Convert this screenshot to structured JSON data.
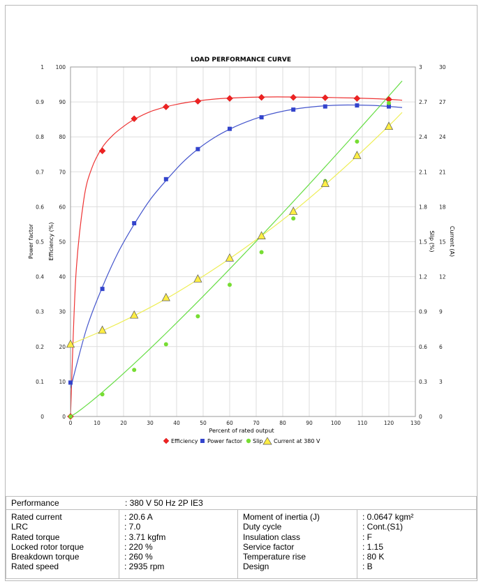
{
  "chart_data": {
    "type": "line",
    "title": "LOAD PERFORMANCE CURVE",
    "xlabel": "Percent of rated output",
    "xlim": [
      0,
      130
    ],
    "xticks": [
      "0",
      "10",
      "20",
      "30",
      "40",
      "50",
      "60",
      "70",
      "80",
      "90",
      "100",
      "110",
      "120",
      "130"
    ],
    "axes": {
      "power_factor": {
        "label": "Power factor",
        "lim": [
          0,
          1
        ],
        "ticks": [
          "0",
          "0.1",
          "0.2",
          "0.3",
          "0.4",
          "0.5",
          "0.6",
          "0.7",
          "0.8",
          "0.9",
          "1"
        ]
      },
      "efficiency": {
        "label": "Efficiency (%)",
        "lim": [
          0,
          100
        ],
        "ticks": [
          "0",
          "10",
          "20",
          "30",
          "40",
          "50",
          "60",
          "70",
          "80",
          "90",
          "100"
        ]
      },
      "slip": {
        "label": "Slip (%)",
        "lim": [
          0,
          3
        ],
        "ticks": [
          "0",
          "0.3",
          "0.6",
          "0.9",
          "1.2",
          "1.5",
          "1.8",
          "2.1",
          "2.4",
          "2.7",
          "3"
        ]
      },
      "current": {
        "label": "Current (A)",
        "lim": [
          0,
          30
        ],
        "ticks": [
          "0",
          "3",
          "6",
          "9",
          "12",
          "15",
          "18",
          "21",
          "24",
          "27",
          "30"
        ]
      }
    },
    "grid": true,
    "legend_position": "bottom",
    "series": [
      {
        "name": "Efficiency",
        "axis": "efficiency",
        "color": "#ee2222",
        "marker": "diamond",
        "x": [
          0,
          12,
          24,
          36,
          48,
          60,
          72,
          84,
          96,
          108,
          120
        ],
        "values": [
          0,
          76,
          85.2,
          88.6,
          90.2,
          91,
          91.3,
          91.3,
          91.2,
          91,
          90.7
        ],
        "curve_x": [
          0,
          2,
          5,
          8,
          12,
          16,
          20,
          24,
          30,
          36,
          42,
          48,
          54,
          60,
          66,
          72,
          78,
          84,
          90,
          96,
          102,
          108,
          114,
          120,
          125
        ],
        "curve_y": [
          0,
          40,
          62,
          71,
          77,
          80.5,
          83,
          85,
          87.2,
          88.6,
          89.6,
          90.3,
          90.8,
          91.1,
          91.3,
          91.4,
          91.45,
          91.4,
          91.35,
          91.3,
          91.2,
          91.1,
          90.95,
          90.75,
          90.5
        ]
      },
      {
        "name": "Power factor",
        "axis": "power_factor",
        "color": "#3344cc",
        "marker": "square",
        "x": [
          0,
          12,
          24,
          36,
          48,
          60,
          72,
          84,
          96,
          108,
          120
        ],
        "values": [
          0.097,
          0.365,
          0.553,
          0.679,
          0.765,
          0.823,
          0.856,
          0.878,
          0.887,
          0.89,
          0.887
        ],
        "curve_x": [
          0,
          6,
          12,
          18,
          24,
          30,
          36,
          42,
          48,
          54,
          60,
          66,
          72,
          78,
          84,
          90,
          96,
          102,
          108,
          114,
          120,
          125
        ],
        "curve_y": [
          0.08,
          0.25,
          0.37,
          0.47,
          0.55,
          0.62,
          0.675,
          0.725,
          0.765,
          0.797,
          0.822,
          0.842,
          0.858,
          0.87,
          0.879,
          0.885,
          0.889,
          0.891,
          0.891,
          0.89,
          0.887,
          0.884
        ]
      },
      {
        "name": "Slip",
        "axis": "slip",
        "color": "#77dd33",
        "marker": "circle",
        "x": [
          0,
          12,
          24,
          36,
          48,
          60,
          72,
          84,
          96,
          108,
          120
        ],
        "values": [
          0,
          0.19,
          0.4,
          0.62,
          0.86,
          1.13,
          1.41,
          1.7,
          2.02,
          2.36,
          2.69
        ],
        "curve_x": [
          0,
          125
        ],
        "curve_y": [
          0,
          2.88
        ],
        "curve_power": 1.12
      },
      {
        "name": "Current at 380 V",
        "axis": "current",
        "color": "#ffee44",
        "marker": "triangle",
        "x": [
          0,
          12,
          24,
          36,
          48,
          60,
          72,
          84,
          96,
          108,
          120
        ],
        "values": [
          6.2,
          7.4,
          8.7,
          10.2,
          11.8,
          13.6,
          15.5,
          17.6,
          20,
          22.4,
          24.9
        ],
        "curve_x": [
          0,
          12,
          24,
          36,
          48,
          60,
          72,
          84,
          96,
          108,
          120,
          125
        ],
        "curve_y": [
          6.2,
          7.35,
          8.65,
          10.1,
          11.75,
          13.55,
          15.5,
          17.6,
          19.9,
          22.35,
          24.95,
          26.1
        ]
      }
    ]
  },
  "specs": {
    "performance": {
      "label": "Performance",
      "value": ": 380 V 50 Hz 2P IE3"
    },
    "left": [
      {
        "label": "Rated current",
        "value": ": 20.6 A"
      },
      {
        "label": "LRC",
        "value": ": 7.0"
      },
      {
        "label": "Rated torque",
        "value": ": 3.71 kgfm"
      },
      {
        "label": "Locked rotor torque",
        "value": ": 220 %"
      },
      {
        "label": "Breakdown torque",
        "value": ": 260 %"
      },
      {
        "label": "Rated speed",
        "value": ": 2935 rpm"
      }
    ],
    "right": [
      {
        "label": "Moment of inertia (J)",
        "value": ": 0.0647 kgm²"
      },
      {
        "label": "Duty cycle",
        "value": ": Cont.(S1)"
      },
      {
        "label": "Insulation class",
        "value": ": F"
      },
      {
        "label": "Service factor",
        "value": ": 1.15"
      },
      {
        "label": "Temperature rise",
        "value": ": 80 K"
      },
      {
        "label": "Design",
        "value": ": B"
      }
    ]
  }
}
